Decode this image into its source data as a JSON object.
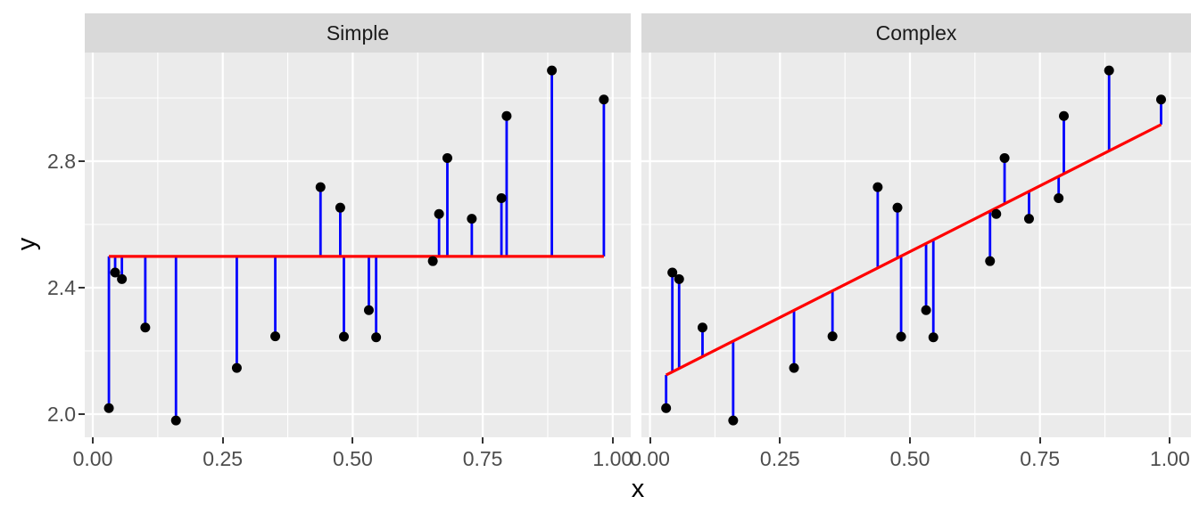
{
  "chart_data": {
    "type": "scatter",
    "title": "",
    "xlabel": "x",
    "ylabel": "y",
    "facet_labels": [
      "Simple",
      "Complex"
    ],
    "x_ticks": {
      "values": [
        0,
        0.25,
        0.5,
        0.75,
        1.0
      ],
      "labels": [
        "0.00",
        "0.25",
        "0.50",
        "0.75",
        "1.00"
      ]
    },
    "y_ticks": {
      "values": [
        2.0,
        2.4,
        2.8
      ],
      "labels": [
        "2.0",
        "2.4",
        "2.8"
      ]
    },
    "x_minor_ticks": [
      0.125,
      0.375,
      0.625,
      0.875
    ],
    "y_minor_ticks": [
      2.2,
      2.6,
      3.0
    ],
    "xlim": [
      -0.017,
      1.033
    ],
    "ylim": [
      1.926,
      3.142
    ],
    "grid": "white major and minor gridlines on gray panel",
    "legend": "none",
    "points": [
      [
        0.031,
        2.019
      ],
      [
        0.043,
        2.448
      ],
      [
        0.056,
        2.427
      ],
      [
        0.101,
        2.274
      ],
      [
        0.16,
        1.98
      ],
      [
        0.277,
        2.146
      ],
      [
        0.351,
        2.246
      ],
      [
        0.438,
        2.718
      ],
      [
        0.476,
        2.653
      ],
      [
        0.483,
        2.245
      ],
      [
        0.531,
        2.329
      ],
      [
        0.545,
        2.243
      ],
      [
        0.654,
        2.484
      ],
      [
        0.666,
        2.633
      ],
      [
        0.682,
        2.81
      ],
      [
        0.729,
        2.618
      ],
      [
        0.786,
        2.683
      ],
      [
        0.796,
        2.943
      ],
      [
        0.883,
        3.087
      ],
      [
        0.983,
        2.995
      ]
    ],
    "fit_lines": [
      {
        "facet": "Simple",
        "type": "mean",
        "value": 2.499
      },
      {
        "facet": "Complex",
        "type": "ols",
        "intercept": 2.098,
        "slope": 0.832
      }
    ],
    "fit_x_range": [
      0.031,
      0.983
    ],
    "residuals": "vertical segments connecting each point to the fit line",
    "colors": {
      "point": "#000000",
      "residual": "#0000ff",
      "fit": "#ff0000",
      "panel_bg": "#ebebeb",
      "strip_bg": "#d9d9d9",
      "grid": "#ffffff",
      "tick_text": "#4d4d4d",
      "tick_mark": "#333333",
      "strip_text": "#1a1a1a"
    }
  }
}
